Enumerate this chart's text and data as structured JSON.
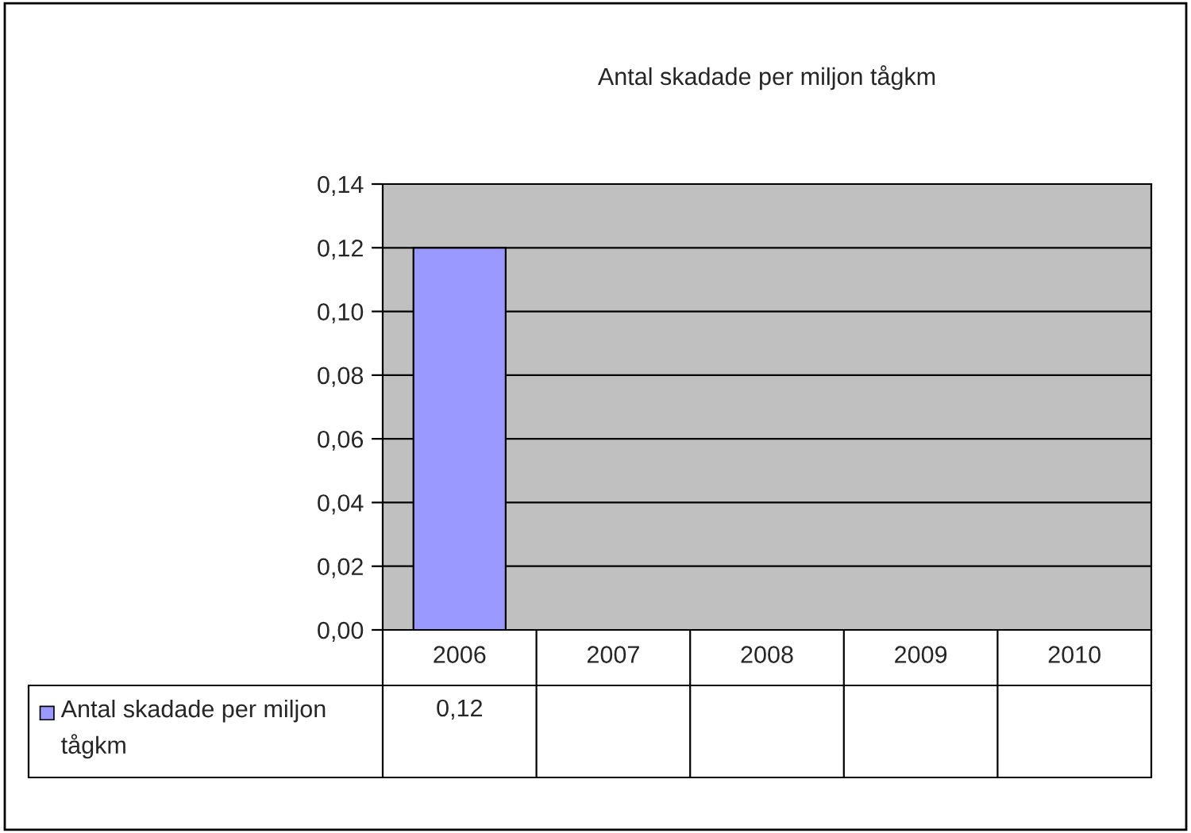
{
  "chart_data": {
    "type": "bar",
    "title": "Antal skadade per miljon tågkm",
    "categories": [
      "2006",
      "2007",
      "2008",
      "2009",
      "2010"
    ],
    "series": [
      {
        "name": "Antal skadade per miljon tågkm",
        "color": "#9999ff",
        "values": [
          0.12,
          null,
          null,
          null,
          null
        ],
        "value_labels": [
          "0,12",
          null,
          null,
          null,
          null
        ]
      }
    ],
    "ylim": [
      0,
      0.14
    ],
    "yticks": [
      {
        "value": 0,
        "label": "0,00"
      },
      {
        "value": 0.02,
        "label": "0,02"
      },
      {
        "value": 0.04,
        "label": "0,04"
      },
      {
        "value": 0.06,
        "label": "0,06"
      },
      {
        "value": 0.08,
        "label": "0,08"
      },
      {
        "value": 0.1,
        "label": "0,10"
      },
      {
        "value": 0.12,
        "label": "0,12"
      },
      {
        "value": 0.14,
        "label": "0,14"
      }
    ],
    "grid": "y",
    "legend": "bottom"
  }
}
